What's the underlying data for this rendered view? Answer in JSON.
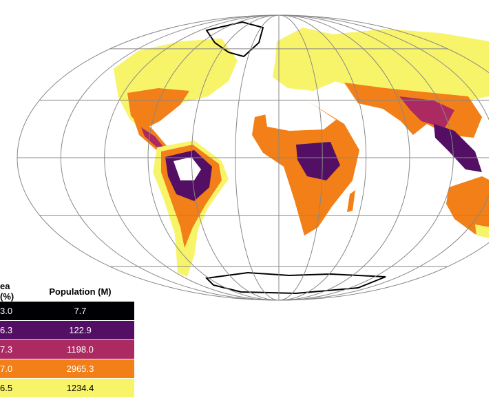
{
  "table": {
    "headers": [
      "ea (%)",
      "Population (M)"
    ],
    "rows": [
      [
        "3.0",
        "7.7"
      ],
      [
        "6.3",
        "122.9"
      ],
      [
        "7.3",
        "1198.0"
      ],
      [
        "7.0",
        "2965.3"
      ],
      [
        "6.5",
        "1234.4"
      ]
    ]
  }
}
